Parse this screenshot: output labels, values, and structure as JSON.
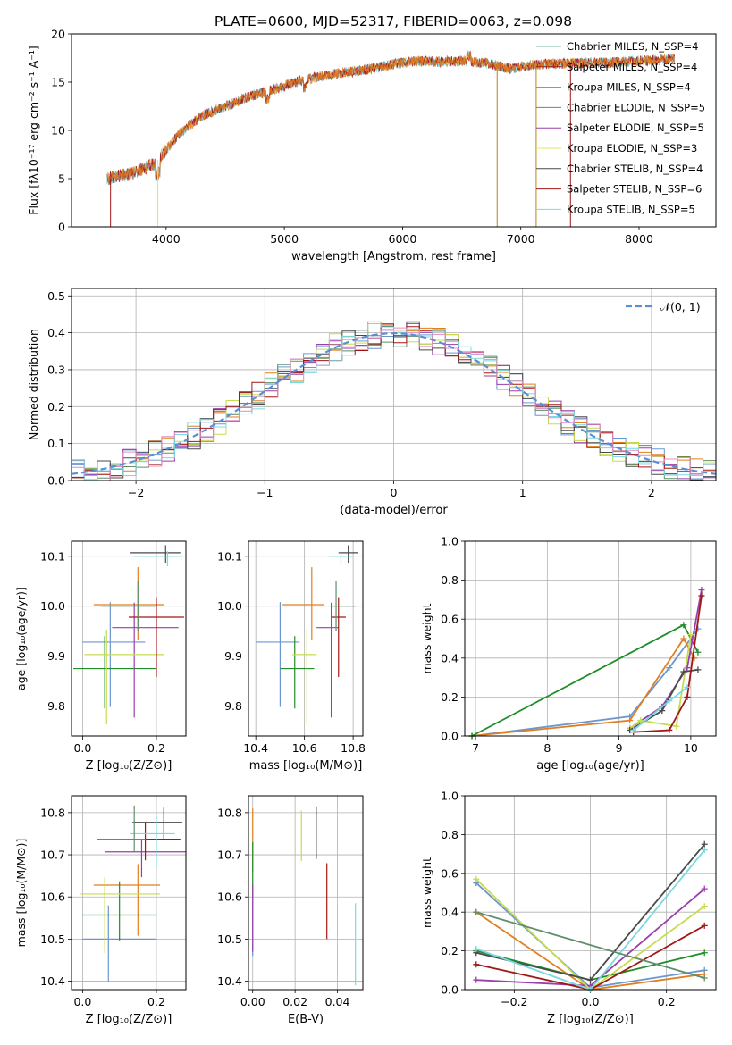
{
  "figure": {
    "title": "PLATE=0600, MJD=52317, FIBERID=0063, z=0.098"
  },
  "colors": [
    "#6b96d1",
    "#e07f1f",
    "#1f8e2a",
    "#9a3ea9",
    "#c7dc4d",
    "#4a4a4a",
    "#a11716",
    "#7ad8e0",
    "#5f8f6a",
    "#e18cc0"
  ],
  "chart_data": [
    {
      "id": "spectrum",
      "type": "line",
      "xlabel": "wavelength [Angstrom, rest frame]",
      "ylabel": "Flux [fλ10⁻¹⁷ erg cm⁻² s⁻¹ A⁻¹]",
      "xlim": [
        3200,
        8650
      ],
      "ylim": [
        0,
        20
      ],
      "xticks": [
        "4000",
        "5000",
        "6000",
        "7000",
        "8000"
      ],
      "yticks": [
        "0",
        "5",
        "10",
        "15",
        "20"
      ],
      "legend_position": "top-right",
      "legend": [
        "Chabrier MILES, N_SSP=4",
        "Salpeter MILES, N_SSP=4",
        "Kroupa MILES, N_SSP=4",
        "Chabrier ELODIE, N_SSP=5",
        "Salpeter ELODIE, N_SSP=5",
        "Kroupa ELODIE, N_SSP=3",
        "Chabrier STELIB, N_SSP=4",
        "Salpeter STELIB, N_SSP=6",
        "Kroupa STELIB, N_SSP=5"
      ],
      "legend_colors": [
        "#7ab8a0",
        "#a11716",
        "#b8860b",
        "#5f8f6a",
        "#9a3ea9",
        "#e3e85a",
        "#4a4a4a",
        "#a11716",
        "#7ad8e0"
      ],
      "continuum": {
        "x": [
          3500,
          3700,
          3900,
          4100,
          4300,
          4500,
          4700,
          4900,
          5100,
          5300,
          5500,
          5700,
          5900,
          6100,
          6300,
          6500,
          6700,
          6900,
          7100,
          7300,
          7500,
          7700,
          8000,
          8300
        ],
        "y": [
          5.0,
          5.5,
          6.5,
          9.5,
          11.5,
          12.5,
          13.5,
          14.2,
          15.0,
          15.6,
          16.0,
          16.3,
          16.8,
          17.2,
          17.1,
          17.2,
          17.0,
          16.4,
          16.8,
          16.9,
          17.0,
          17.0,
          17.2,
          17.4
        ]
      }
    },
    {
      "id": "residuals",
      "type": "histogram",
      "xlabel": "(data-model)/error",
      "ylabel": "Normed distribution",
      "xlim": [
        -2.5,
        2.5
      ],
      "ylim": [
        0,
        0.52
      ],
      "xticks": [
        "−2",
        "−1",
        "0",
        "1",
        "2"
      ],
      "yticks": [
        "0.0",
        "0.1",
        "0.2",
        "0.3",
        "0.4",
        "0.5"
      ],
      "grid": true,
      "legend_position": "top-right",
      "legend": [
        "𝒩(0, 1)"
      ],
      "bin_width": 0.1
    },
    {
      "id": "age-vs-Z",
      "type": "scatter",
      "xlabel": "Z [log₁₀(Z/Z⊙)]",
      "ylabel": "age  [log₁₀(age/yr)]",
      "xlim": [
        -0.03,
        0.28
      ],
      "ylim": [
        9.74,
        10.13
      ],
      "xticks": [
        "0.0",
        "0.2"
      ],
      "yticks": [
        "9.8",
        "9.9",
        "10.0",
        "10.1"
      ],
      "grid": true,
      "points": [
        {
          "x": 0.075,
          "y": 9.928,
          "xerr": [
            0.075,
            0.095
          ],
          "yerr": [
            0.13,
            0.08
          ]
        },
        {
          "x": 0.15,
          "y": 10.003,
          "xerr": [
            0.12,
            0.07
          ],
          "yerr": [
            0.07,
            0.075
          ]
        },
        {
          "x": 0.06,
          "y": 9.875,
          "xerr": [
            0.085,
            0.14
          ],
          "yerr": [
            0.08,
            0.065
          ]
        },
        {
          "x": 0.14,
          "y": 9.957,
          "xerr": [
            0.06,
            0.12
          ],
          "yerr": [
            0.18,
            0.05
          ]
        },
        {
          "x": 0.065,
          "y": 9.903,
          "xerr": [
            0.06,
            0.155
          ],
          "yerr": [
            0.14,
            0.05
          ]
        },
        {
          "x": 0.225,
          "y": 10.107,
          "xerr": [
            0.095,
            0.04
          ],
          "yerr": [
            0.02,
            0.015
          ]
        },
        {
          "x": 0.2,
          "y": 9.978,
          "xerr": [
            0.075,
            0.075
          ],
          "yerr": [
            0.12,
            0.04
          ]
        },
        {
          "x": 0.23,
          "y": 10.1,
          "xerr": [
            0.09,
            0.04
          ],
          "yerr": [
            0.02,
            0.01
          ]
        },
        {
          "x": 0.15,
          "y": 10.0,
          "xerr": [
            0.1,
            0.05
          ],
          "yerr": [
            0.05,
            0.05
          ]
        }
      ]
    },
    {
      "id": "age-vs-mass",
      "type": "scatter",
      "xlabel": "mass [log₁₀(M/M⊙)]",
      "ylabel": "",
      "xlim": [
        10.37,
        10.84
      ],
      "ylim": [
        9.74,
        10.13
      ],
      "xticks": [
        "10.4",
        "10.6",
        "10.8"
      ],
      "yticks": [
        "9.8",
        "9.9",
        "10.0",
        "10.1"
      ],
      "grid": true,
      "points": [
        {
          "x": 10.5,
          "y": 9.928,
          "xerr": [
            0.1,
            0.08
          ],
          "yerr": [
            0.13,
            0.08
          ]
        },
        {
          "x": 10.63,
          "y": 10.003,
          "xerr": [
            0.12,
            0.05
          ],
          "yerr": [
            0.07,
            0.075
          ]
        },
        {
          "x": 10.56,
          "y": 9.875,
          "xerr": [
            0.06,
            0.08
          ],
          "yerr": [
            0.08,
            0.065
          ]
        },
        {
          "x": 10.71,
          "y": 9.957,
          "xerr": [
            0.06,
            0.03
          ],
          "yerr": [
            0.18,
            0.05
          ]
        },
        {
          "x": 10.61,
          "y": 9.903,
          "xerr": [
            0.06,
            0.04
          ],
          "yerr": [
            0.14,
            0.05
          ]
        },
        {
          "x": 10.78,
          "y": 10.107,
          "xerr": [
            0.04,
            0.04
          ],
          "yerr": [
            0.02,
            0.015
          ]
        },
        {
          "x": 10.74,
          "y": 9.978,
          "xerr": [
            0.03,
            0.03
          ],
          "yerr": [
            0.12,
            0.04
          ]
        },
        {
          "x": 10.75,
          "y": 10.1,
          "xerr": [
            0.05,
            0.05
          ],
          "yerr": [
            0.02,
            0.01
          ]
        },
        {
          "x": 10.73,
          "y": 10.0,
          "xerr": [
            0.02,
            0.08
          ],
          "yerr": [
            0.05,
            0.05
          ]
        }
      ]
    },
    {
      "id": "weight-vs-age",
      "type": "line",
      "xlabel": "age  [log₁₀(age/yr)]",
      "ylabel": "mass weight",
      "xlim": [
        6.85,
        10.35
      ],
      "ylim": [
        0,
        1.0
      ],
      "xticks": [
        "7",
        "8",
        "9",
        "10"
      ],
      "yticks": [
        "0.0",
        "0.2",
        "0.4",
        "0.6",
        "0.8",
        "1.0"
      ],
      "grid": true,
      "series": [
        {
          "x": [
            6.95,
            9.15,
            9.7,
            10.1
          ],
          "y": [
            0.0,
            0.1,
            0.35,
            0.55
          ]
        },
        {
          "x": [
            6.95,
            9.15,
            9.9,
            10.05
          ],
          "y": [
            0.0,
            0.08,
            0.5,
            0.4
          ]
        },
        {
          "x": [
            6.95,
            9.9,
            10.1
          ],
          "y": [
            0.0,
            0.57,
            0.43
          ]
        },
        {
          "x": [
            9.15,
            9.6,
            9.95,
            10.15
          ],
          "y": [
            0.04,
            0.15,
            0.35,
            0.75
          ]
        },
        {
          "x": [
            9.15,
            9.3,
            9.8,
            10.0
          ],
          "y": [
            0.04,
            0.08,
            0.05,
            0.52
          ]
        },
        {
          "x": [
            9.15,
            9.6,
            9.9,
            10.1
          ],
          "y": [
            0.03,
            0.13,
            0.33,
            0.34
          ]
        },
        {
          "x": [
            9.2,
            9.7,
            9.95,
            10.15
          ],
          "y": [
            0.02,
            0.03,
            0.2,
            0.72
          ]
        },
        {
          "x": [
            9.2,
            9.7,
            9.95
          ],
          "y": [
            0.03,
            0.18,
            0.25
          ]
        }
      ]
    },
    {
      "id": "mass-vs-Z",
      "type": "scatter",
      "xlabel": "Z [log₁₀(Z/Z⊙)]",
      "ylabel": "mass [log₁₀(M/M⊙)]",
      "xlim": [
        -0.03,
        0.28
      ],
      "ylim": [
        10.38,
        10.84
      ],
      "xticks": [
        "0.0",
        "0.2"
      ],
      "yticks": [
        "10.4",
        "10.5",
        "10.6",
        "10.7",
        "10.8"
      ],
      "grid": true,
      "points": [
        {
          "x": 0.07,
          "y": 10.5,
          "xerr": [
            0.07,
            0.13
          ],
          "yerr": [
            0.1,
            0.08
          ]
        },
        {
          "x": 0.15,
          "y": 10.628,
          "xerr": [
            0.12,
            0.06
          ],
          "yerr": [
            0.12,
            0.05
          ]
        },
        {
          "x": 0.1,
          "y": 10.557,
          "xerr": [
            0.1,
            0.1
          ],
          "yerr": [
            0.06,
            0.08
          ]
        },
        {
          "x": 0.16,
          "y": 10.707,
          "xerr": [
            0.1,
            0.12
          ],
          "yerr": [
            0.06,
            0.03
          ]
        },
        {
          "x": 0.06,
          "y": 10.607,
          "xerr": [
            0.065,
            0.15
          ],
          "yerr": [
            0.14,
            0.04
          ]
        },
        {
          "x": 0.22,
          "y": 10.777,
          "xerr": [
            0.085,
            0.05
          ],
          "yerr": [
            0.04,
            0.035
          ]
        },
        {
          "x": 0.17,
          "y": 10.737,
          "xerr": [
            0.045,
            0.095
          ],
          "yerr": [
            0.05,
            0.04
          ]
        },
        {
          "x": 0.2,
          "y": 10.75,
          "xerr": [
            0.07,
            0.05
          ],
          "yerr": [
            0.08,
            0.04
          ]
        },
        {
          "x": 0.14,
          "y": 10.737,
          "xerr": [
            0.1,
            0.03
          ],
          "yerr": [
            0.03,
            0.08
          ]
        }
      ]
    },
    {
      "id": "mass-vs-EBV",
      "type": "scatter",
      "xlabel": "E(B-V)",
      "ylabel": "",
      "xlim": [
        -0.002,
        0.052
      ],
      "ylim": [
        10.38,
        10.84
      ],
      "xticks": [
        "0.00",
        "0.02",
        "0.04"
      ],
      "yticks": [
        "10.4",
        "10.5",
        "10.6",
        "10.7",
        "10.8"
      ],
      "grid": true,
      "points": [
        {
          "x": 0.0,
          "y": 10.56,
          "yerr": [
            0.1,
            0.05
          ]
        },
        {
          "x": 0.0,
          "y": 10.72,
          "yerr": [
            0.06,
            0.09
          ]
        },
        {
          "x": 0.0,
          "y": 10.65,
          "yerr": [
            0.05,
            0.08
          ]
        },
        {
          "x": 0.0,
          "y": 10.55,
          "yerr": [
            0.08,
            0.08
          ]
        },
        {
          "x": 0.023,
          "y": 10.745,
          "yerr": [
            0.06,
            0.06
          ]
        },
        {
          "x": 0.03,
          "y": 10.75,
          "yerr": [
            0.06,
            0.065
          ]
        },
        {
          "x": 0.035,
          "y": 10.59,
          "yerr": [
            0.09,
            0.09
          ]
        },
        {
          "x": 0.0485,
          "y": 10.49,
          "yerr": [
            0.1,
            0.095
          ]
        }
      ]
    },
    {
      "id": "weight-vs-Z",
      "type": "line",
      "xlabel": "Z [log₁₀(Z/Z⊙)]",
      "ylabel": "mass weight",
      "xlim": [
        -0.33,
        0.33
      ],
      "ylim": [
        0,
        1.0
      ],
      "xticks": [
        "−0.2",
        "0.0",
        "0.2"
      ],
      "yticks": [
        "0.0",
        "0.2",
        "0.4",
        "0.6",
        "0.8",
        "1.0"
      ],
      "grid": true,
      "series": [
        {
          "x": [
            -0.3,
            0.0,
            0.3
          ],
          "y": [
            0.55,
            0.01,
            0.1
          ]
        },
        {
          "x": [
            -0.3,
            0.0,
            0.3
          ],
          "y": [
            0.4,
            0.0,
            0.08
          ]
        },
        {
          "x": [
            -0.3,
            0.0,
            0.3
          ],
          "y": [
            0.2,
            0.05,
            0.19
          ]
        },
        {
          "x": [
            -0.3,
            0.0,
            0.3
          ],
          "y": [
            0.05,
            0.02,
            0.52
          ]
        },
        {
          "x": [
            -0.3,
            0.0,
            0.3
          ],
          "y": [
            0.57,
            0.0,
            0.43
          ]
        },
        {
          "x": [
            -0.3,
            0.0,
            0.3
          ],
          "y": [
            0.19,
            0.05,
            0.75
          ]
        },
        {
          "x": [
            -0.3,
            0.0,
            0.3
          ],
          "y": [
            0.13,
            0.0,
            0.33
          ]
        },
        {
          "x": [
            -0.3,
            0.0,
            0.3
          ],
          "y": [
            0.21,
            0.0,
            0.72
          ]
        },
        {
          "x": [
            -0.3,
            0.3
          ],
          "y": [
            0.4,
            0.06
          ]
        }
      ]
    }
  ]
}
